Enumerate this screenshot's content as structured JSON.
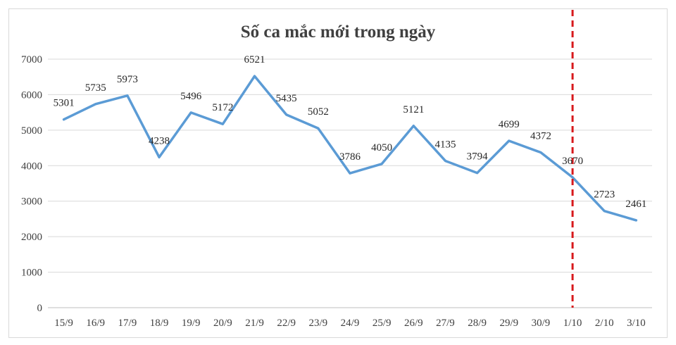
{
  "chart_data": {
    "type": "line",
    "title": "Số ca mắc mới trong ngày",
    "xlabel": "",
    "ylabel": "",
    "categories": [
      "15/9",
      "16/9",
      "17/9",
      "18/9",
      "19/9",
      "20/9",
      "21/9",
      "22/9",
      "23/9",
      "24/9",
      "25/9",
      "26/9",
      "27/9",
      "28/9",
      "29/9",
      "30/9",
      "1/10",
      "2/10",
      "3/10"
    ],
    "series": [
      {
        "values": [
          5301,
          5735,
          5973,
          4238,
          5496,
          5172,
          6521,
          5435,
          5052,
          3786,
          4050,
          5121,
          4135,
          3794,
          4699,
          4372,
          3670,
          2723,
          2461
        ]
      }
    ],
    "ylim": [
      0,
      7000
    ],
    "yticks": [
      0,
      1000,
      2000,
      3000,
      4000,
      5000,
      6000,
      7000
    ],
    "grid": true,
    "legend": "none",
    "marker_category": "1/10",
    "colors": {
      "line": "#5b9bd5",
      "marker": "#d7191c",
      "grid": "#d9d9d9",
      "text": "#404040"
    }
  }
}
